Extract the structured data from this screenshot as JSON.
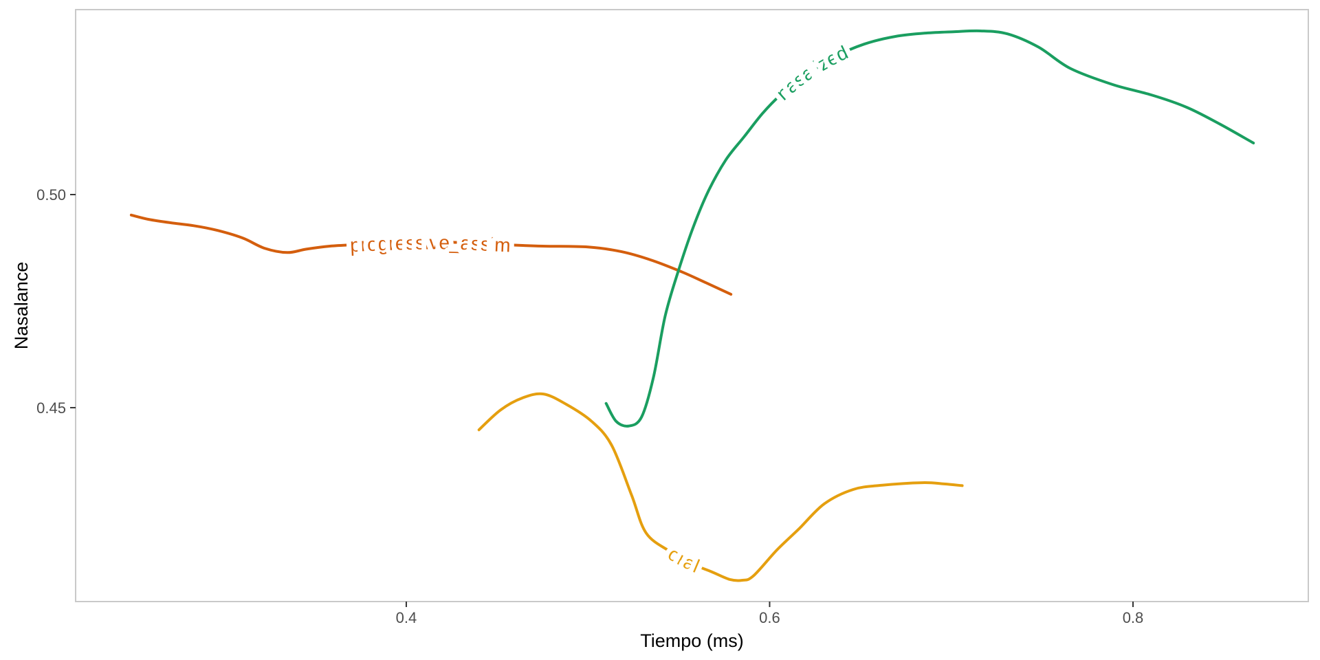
{
  "chart_data": {
    "type": "line",
    "title": "",
    "xlabel": "Tiempo (ms)",
    "ylabel": "Nasalance",
    "xlim": [
      0.218,
      0.8965
    ],
    "ylim": [
      0.4045,
      0.5434
    ],
    "x_ticks": [
      0.4,
      0.6,
      0.8
    ],
    "x_tick_labels": [
      "0.4",
      "0.6",
      "0.8"
    ],
    "y_ticks": [
      0.45,
      0.5
    ],
    "y_tick_labels": [
      "0.45",
      "0.50"
    ],
    "grid": false,
    "legend": "labels-drawn-on-curves",
    "series": [
      {
        "name": "progressive_assim",
        "label": "progressive_assim",
        "color": "#D45E0D",
        "label_start_x": 0.369,
        "points": [
          [
            0.2486,
            0.4952
          ],
          [
            0.258,
            0.4942
          ],
          [
            0.27,
            0.4934
          ],
          [
            0.283,
            0.4927
          ],
          [
            0.296,
            0.4916
          ],
          [
            0.31,
            0.4898
          ],
          [
            0.322,
            0.4874
          ],
          [
            0.3345,
            0.4864
          ],
          [
            0.345,
            0.4872
          ],
          [
            0.358,
            0.4879
          ],
          [
            0.375,
            0.4883
          ],
          [
            0.4,
            0.4887
          ],
          [
            0.425,
            0.4888
          ],
          [
            0.45,
            0.4883
          ],
          [
            0.475,
            0.4879
          ],
          [
            0.5,
            0.4877
          ],
          [
            0.5185,
            0.4866
          ],
          [
            0.535,
            0.4846
          ],
          [
            0.552,
            0.4818
          ],
          [
            0.565,
            0.4793
          ],
          [
            0.5787,
            0.4766
          ]
        ]
      },
      {
        "name": "oral",
        "label": "oral",
        "color": "#E59F0F",
        "label_start_x": 0.5457,
        "points": [
          [
            0.44,
            0.4448
          ],
          [
            0.452,
            0.4495
          ],
          [
            0.464,
            0.4523
          ],
          [
            0.4755,
            0.4532
          ],
          [
            0.488,
            0.4508
          ],
          [
            0.502,
            0.4468
          ],
          [
            0.513,
            0.4412
          ],
          [
            0.524,
            0.4295
          ],
          [
            0.532,
            0.4206
          ],
          [
            0.545,
            0.4163
          ],
          [
            0.557,
            0.4134
          ],
          [
            0.568,
            0.4115
          ],
          [
            0.578,
            0.4097
          ],
          [
            0.585,
            0.4095
          ],
          [
            0.591,
            0.4105
          ],
          [
            0.604,
            0.4166
          ],
          [
            0.616,
            0.4215
          ],
          [
            0.63,
            0.4274
          ],
          [
            0.646,
            0.4308
          ],
          [
            0.662,
            0.4318
          ],
          [
            0.684,
            0.4324
          ],
          [
            0.696,
            0.4321
          ],
          [
            0.706,
            0.4317
          ]
        ]
      },
      {
        "name": "nasalized",
        "label": "nasalized",
        "color": "#1A9E60",
        "label_start_x": 0.606,
        "points": [
          [
            0.51,
            0.451
          ],
          [
            0.5155,
            0.4468
          ],
          [
            0.5225,
            0.4457
          ],
          [
            0.5295,
            0.4478
          ],
          [
            0.536,
            0.457
          ],
          [
            0.5425,
            0.4715
          ],
          [
            0.55,
            0.4824
          ],
          [
            0.558,
            0.4924
          ],
          [
            0.5665,
            0.501
          ],
          [
            0.576,
            0.5082
          ],
          [
            0.586,
            0.5136
          ],
          [
            0.596,
            0.519
          ],
          [
            0.606,
            0.5234
          ],
          [
            0.62,
            0.5283
          ],
          [
            0.636,
            0.5324
          ],
          [
            0.652,
            0.5353
          ],
          [
            0.669,
            0.5371
          ],
          [
            0.686,
            0.5379
          ],
          [
            0.701,
            0.5382
          ],
          [
            0.716,
            0.5384
          ],
          [
            0.731,
            0.5377
          ],
          [
            0.748,
            0.5346
          ],
          [
            0.7655,
            0.5296
          ],
          [
            0.789,
            0.5258
          ],
          [
            0.81,
            0.5234
          ],
          [
            0.8295,
            0.5205
          ],
          [
            0.848,
            0.5165
          ],
          [
            0.8663,
            0.5121
          ]
        ]
      }
    ],
    "style": {
      "panel_border_color": "#C9C9C9",
      "panel_background": "#FFFFFF",
      "tick_mark_color": "#333333",
      "tick_label_color": "#4D4D4D",
      "axis_title_color": "#000000"
    }
  }
}
